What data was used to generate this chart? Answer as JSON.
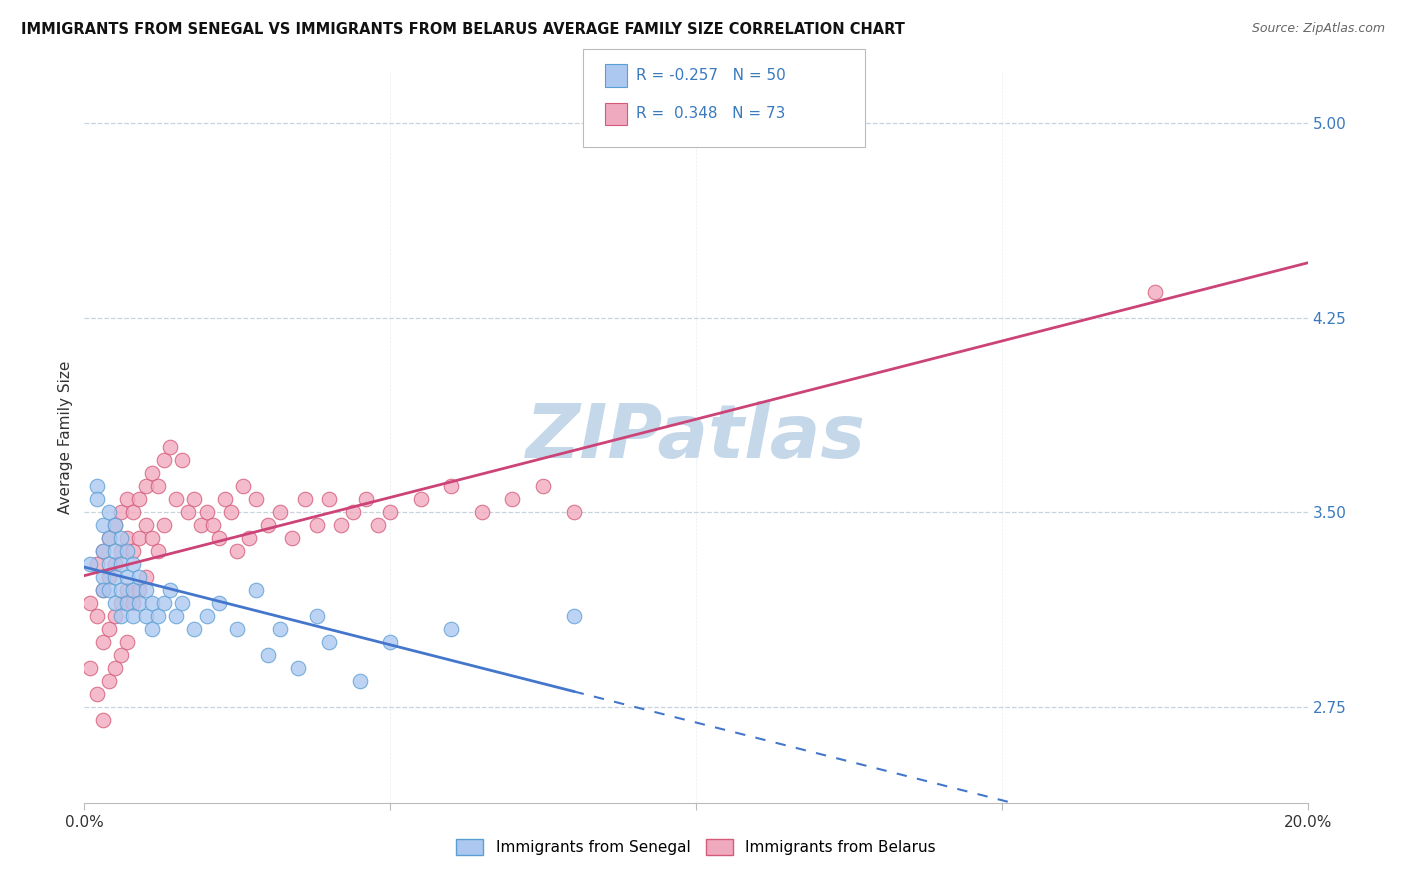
{
  "title": "IMMIGRANTS FROM SENEGAL VS IMMIGRANTS FROM BELARUS AVERAGE FAMILY SIZE CORRELATION CHART",
  "source": "Source: ZipAtlas.com",
  "ylabel": "Average Family Size",
  "xlim": [
    0.0,
    0.2
  ],
  "ylim": [
    2.38,
    5.2
  ],
  "yticks": [
    2.75,
    3.5,
    4.25,
    5.0
  ],
  "xticks": [
    0.0,
    0.05,
    0.1,
    0.15,
    0.2
  ],
  "legend_r_senegal": "-0.257",
  "legend_n_senegal": "50",
  "legend_r_belarus": "0.348",
  "legend_n_belarus": "73",
  "color_senegal_fill": "#adc8f0",
  "color_senegal_edge": "#5a9fd4",
  "color_belarus_fill": "#f0aabf",
  "color_belarus_edge": "#d45a7a",
  "color_senegal_line": "#4477cc",
  "color_belarus_line": "#cc4477",
  "watermark": "ZIPatlas",
  "watermark_color": "#c5d8ea",
  "background_color": "#ffffff",
  "grid_color": "#c8d4dc",
  "senegal_x": [
    0.001,
    0.002,
    0.002,
    0.003,
    0.003,
    0.003,
    0.003,
    0.004,
    0.004,
    0.004,
    0.004,
    0.005,
    0.005,
    0.005,
    0.005,
    0.006,
    0.006,
    0.006,
    0.006,
    0.007,
    0.007,
    0.007,
    0.008,
    0.008,
    0.008,
    0.009,
    0.009,
    0.01,
    0.01,
    0.011,
    0.011,
    0.012,
    0.013,
    0.014,
    0.015,
    0.016,
    0.018,
    0.02,
    0.022,
    0.025,
    0.028,
    0.03,
    0.032,
    0.035,
    0.038,
    0.04,
    0.045,
    0.05,
    0.06,
    0.08
  ],
  "senegal_y": [
    3.3,
    3.6,
    3.55,
    3.45,
    3.35,
    3.25,
    3.2,
    3.5,
    3.4,
    3.3,
    3.2,
    3.45,
    3.35,
    3.25,
    3.15,
    3.4,
    3.3,
    3.2,
    3.1,
    3.35,
    3.25,
    3.15,
    3.3,
    3.2,
    3.1,
    3.25,
    3.15,
    3.2,
    3.1,
    3.15,
    3.05,
    3.1,
    3.15,
    3.2,
    3.1,
    3.15,
    3.05,
    3.1,
    3.15,
    3.05,
    3.2,
    2.95,
    3.05,
    2.9,
    3.1,
    3.0,
    2.85,
    3.0,
    3.05,
    3.1
  ],
  "belarus_x": [
    0.001,
    0.001,
    0.002,
    0.002,
    0.002,
    0.003,
    0.003,
    0.003,
    0.003,
    0.004,
    0.004,
    0.004,
    0.004,
    0.005,
    0.005,
    0.005,
    0.005,
    0.006,
    0.006,
    0.006,
    0.006,
    0.007,
    0.007,
    0.007,
    0.007,
    0.008,
    0.008,
    0.008,
    0.009,
    0.009,
    0.009,
    0.01,
    0.01,
    0.01,
    0.011,
    0.011,
    0.012,
    0.012,
    0.013,
    0.013,
    0.014,
    0.015,
    0.016,
    0.017,
    0.018,
    0.019,
    0.02,
    0.021,
    0.022,
    0.023,
    0.024,
    0.025,
    0.026,
    0.027,
    0.028,
    0.03,
    0.032,
    0.034,
    0.036,
    0.038,
    0.04,
    0.042,
    0.044,
    0.046,
    0.048,
    0.05,
    0.055,
    0.06,
    0.065,
    0.07,
    0.075,
    0.08,
    0.175
  ],
  "belarus_y": [
    3.15,
    2.9,
    3.3,
    3.1,
    2.8,
    3.35,
    3.2,
    3.0,
    2.7,
    3.4,
    3.25,
    3.05,
    2.85,
    3.45,
    3.3,
    3.1,
    2.9,
    3.5,
    3.35,
    3.15,
    2.95,
    3.55,
    3.4,
    3.2,
    3.0,
    3.5,
    3.35,
    3.15,
    3.55,
    3.4,
    3.2,
    3.6,
    3.45,
    3.25,
    3.65,
    3.4,
    3.6,
    3.35,
    3.7,
    3.45,
    3.75,
    3.55,
    3.7,
    3.5,
    3.55,
    3.45,
    3.5,
    3.45,
    3.4,
    3.55,
    3.5,
    3.35,
    3.6,
    3.4,
    3.55,
    3.45,
    3.5,
    3.4,
    3.55,
    3.45,
    3.55,
    3.45,
    3.5,
    3.55,
    3.45,
    3.5,
    3.55,
    3.6,
    3.5,
    3.55,
    3.6,
    3.5,
    4.35
  ]
}
